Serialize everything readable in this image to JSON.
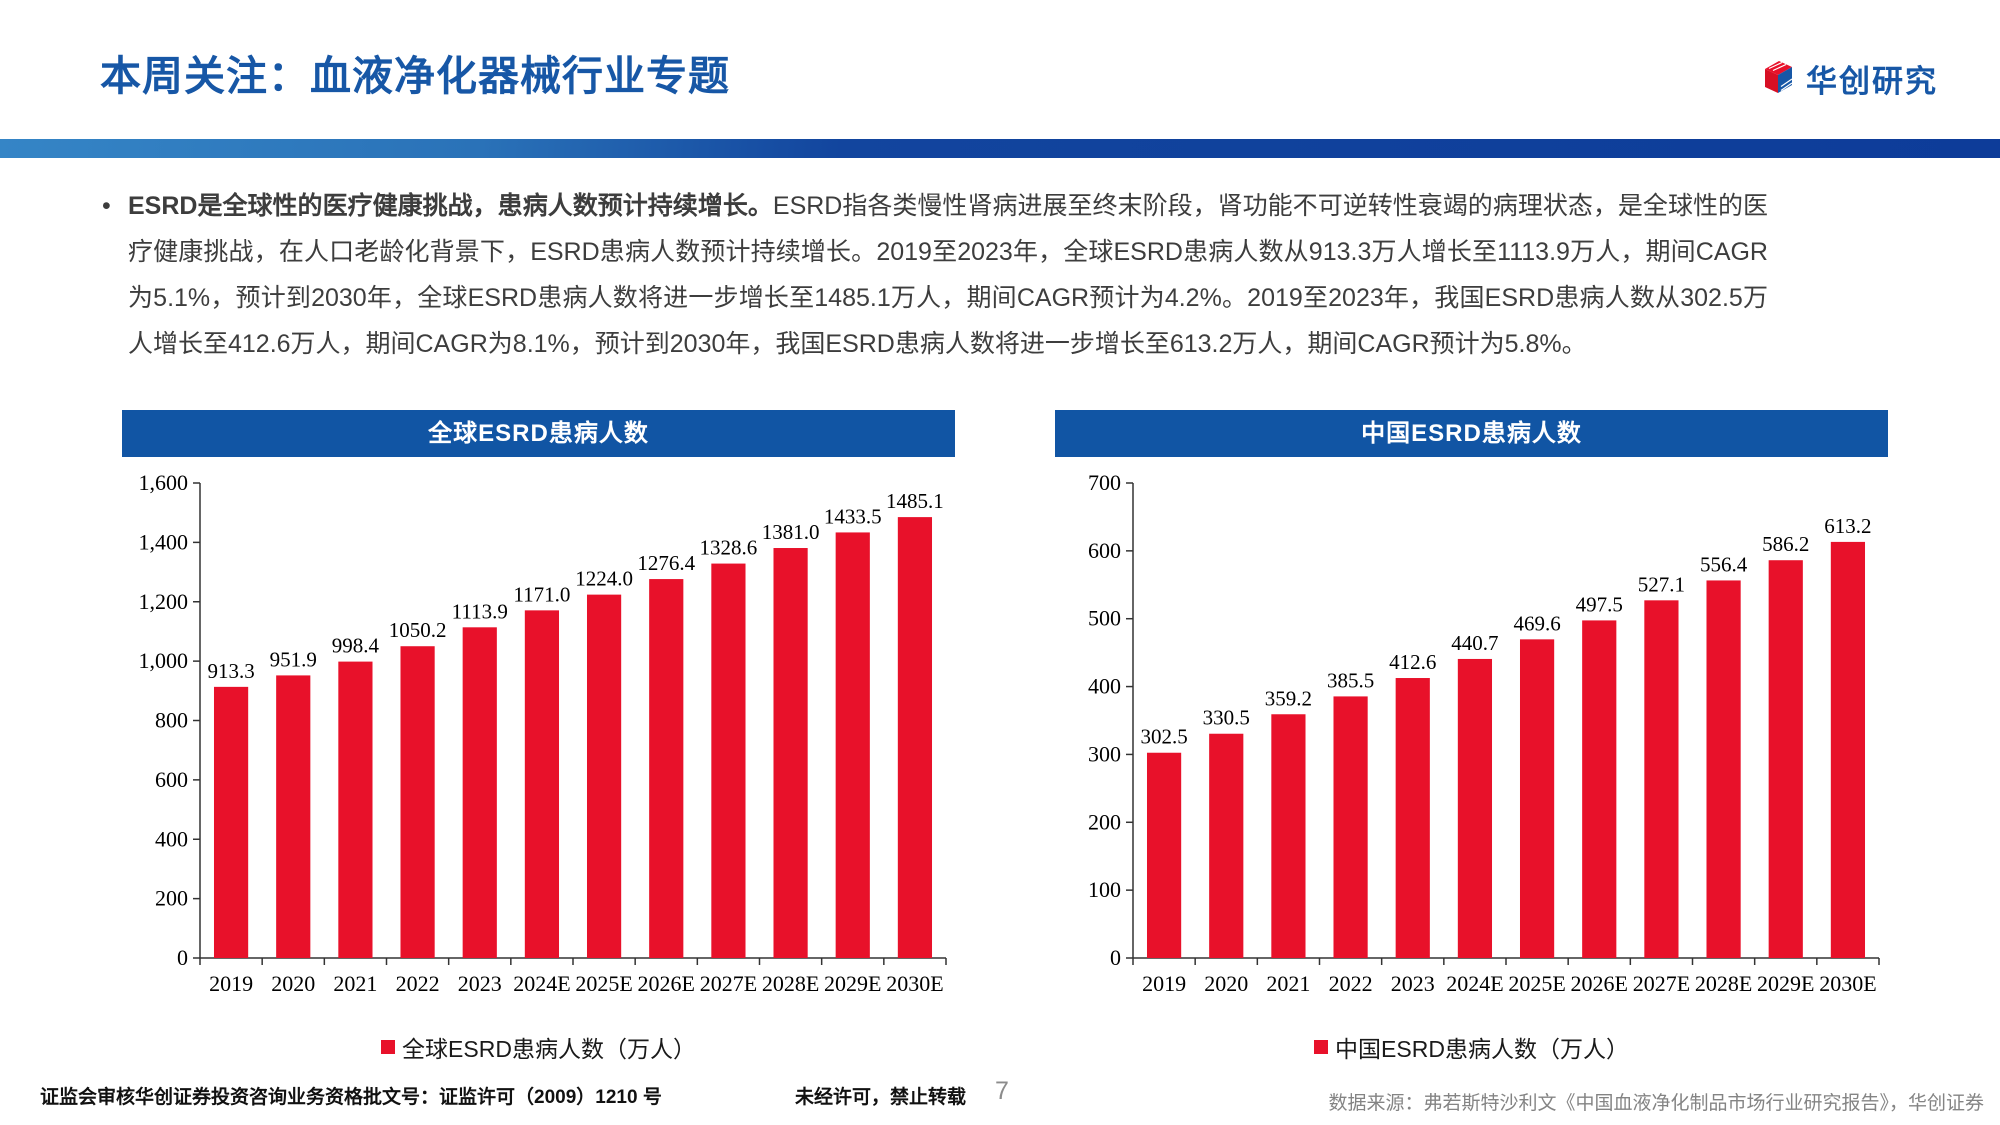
{
  "header": {
    "title": "本周关注：血液净化器械行业专题",
    "brand": "华创研究"
  },
  "bullet": {
    "marker": "•",
    "lead_bold": "ESRD是全球性的医疗健康挑战，患病人数预计持续增长。",
    "body": "ESRD指各类慢性肾病进展至终末阶段，肾功能不可逆转性衰竭的病理状态，是全球性的医疗健康挑战，在人口老龄化背景下，ESRD患病人数预计持续增长。2019至2023年，全球ESRD患病人数从913.3万人增长至1113.9万人，期间CAGR为5.1%，预计到2030年，全球ESRD患病人数将进一步增长至1485.1万人，期间CAGR预计为4.2%。2019至2023年，我国ESRD患病人数从302.5万人增长至412.6万人，期间CAGR为8.1%，预计到2030年，我国ESRD患病人数将进一步增长至613.2万人，期间CAGR预计为5.8%。"
  },
  "colors": {
    "accent_blue": "#1757a6",
    "banner_blue": "#1155a4",
    "bar_red": "#e8112a"
  },
  "chart_data": [
    {
      "type": "bar",
      "title": "全球ESRD患病人数",
      "legend": "全球ESRD患病人数（万人）",
      "categories": [
        "2019",
        "2020",
        "2021",
        "2022",
        "2023",
        "2024E",
        "2025E",
        "2026E",
        "2027E",
        "2028E",
        "2029E",
        "2030E"
      ],
      "values": [
        913.3,
        951.9,
        998.4,
        1050.2,
        1113.9,
        1171.0,
        1224.0,
        1276.4,
        1328.6,
        1381.0,
        1433.5,
        1485.1
      ],
      "labels": [
        "913.3",
        "951.9",
        "998.4",
        "1050.2",
        "1113.9",
        "1171.0",
        "1224.0",
        "1276.4",
        "1328.6",
        "1381.0",
        "1433.5",
        "1485.1"
      ],
      "ylim": [
        0,
        1600
      ],
      "ytick_values": [
        0,
        200,
        400,
        600,
        800,
        1000,
        1200,
        1400,
        1600
      ],
      "ytick_labels": [
        "0",
        "200",
        "400",
        "600",
        "800",
        "1,000",
        "1,200",
        "1,400",
        "1,600"
      ],
      "bar_color": "#e8112a",
      "grid": false,
      "legend_position": "bottom"
    },
    {
      "type": "bar",
      "title": "中国ESRD患病人数",
      "legend": "中国ESRD患病人数（万人）",
      "categories": [
        "2019",
        "2020",
        "2021",
        "2022",
        "2023",
        "2024E",
        "2025E",
        "2026E",
        "2027E",
        "2028E",
        "2029E",
        "2030E"
      ],
      "values": [
        302.5,
        330.5,
        359.2,
        385.5,
        412.6,
        440.7,
        469.6,
        497.5,
        527.1,
        556.4,
        586.2,
        613.2
      ],
      "labels": [
        "302.5",
        "330.5",
        "359.2",
        "385.5",
        "412.6",
        "440.7",
        "469.6",
        "497.5",
        "527.1",
        "556.4",
        "586.2",
        "613.2"
      ],
      "ylim": [
        0,
        700
      ],
      "ytick_values": [
        0,
        100,
        200,
        300,
        400,
        500,
        600,
        700
      ],
      "ytick_labels": [
        "0",
        "100",
        "200",
        "300",
        "400",
        "500",
        "600",
        "700"
      ],
      "bar_color": "#e8112a",
      "grid": false,
      "legend_position": "bottom"
    }
  ],
  "footer": {
    "license": "证监会审核华创证券投资咨询业务资格批文号：证监许可（2009）1210 号",
    "notice": "未经许可，禁止转载",
    "page_number": "7",
    "source": "数据来源：弗若斯特沙利文《中国血液净化制品市场行业研究报告》，华创证券"
  }
}
